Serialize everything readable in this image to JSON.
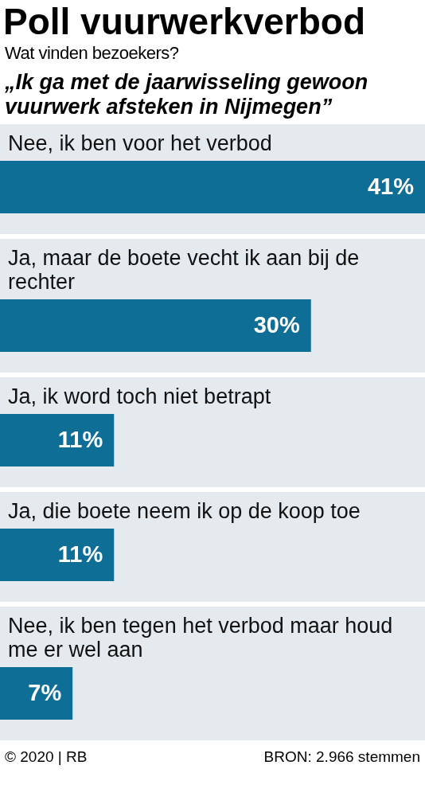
{
  "chart_data": {
    "type": "bar",
    "orientation": "horizontal",
    "title": "Poll vuurwerkverbod",
    "subtitle": "Wat vinden bezoekers?",
    "annotations": [
      "„Ik ga met de jaarwisseling gewoon vuurwerk afsteken in Nijmegen”",
      "© 2020 | RB",
      "BRON: 2.966 stemmen"
    ],
    "categories": [
      "Nee, ik ben voor het verbod",
      "Ja, maar de boete vecht ik aan bij de rechter",
      "Ja, ik word toch niet betrapt",
      "Ja, die boete neem ik op de koop toe",
      "Nee, ik ben tegen het verbod maar houd me er wel aan"
    ],
    "values": [
      41,
      30,
      11,
      11,
      7
    ],
    "value_labels": [
      "41%",
      "30%",
      "11%",
      "11%",
      "7%"
    ],
    "color": "#0f6e96"
  }
}
